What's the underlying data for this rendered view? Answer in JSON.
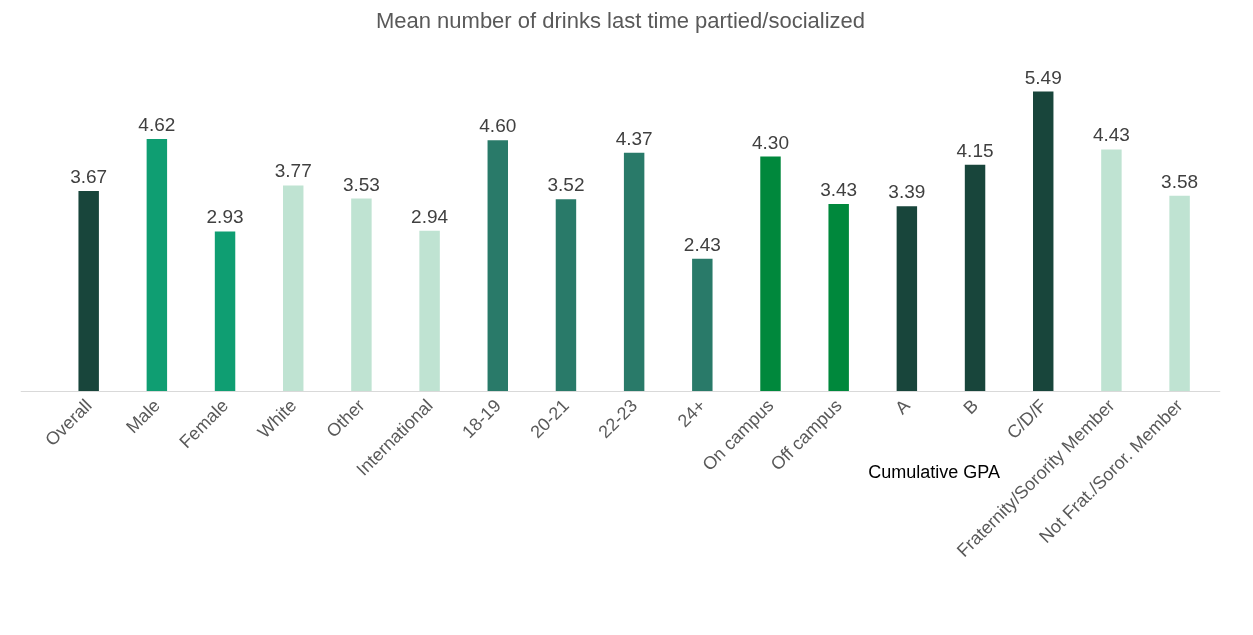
{
  "chart_data": {
    "type": "bar",
    "title": "Mean number of drinks last time partied/socialized",
    "categories": [
      "Overall",
      "Male",
      "Female",
      "White",
      "Other",
      "International",
      "18-19",
      "20-21",
      "22-23",
      "24+",
      "On campus",
      "Off campus",
      "A",
      "B",
      "C/D/F",
      "Fraternity/Sorority Member",
      "Not Frat./Soror. Member"
    ],
    "values": [
      3.67,
      4.62,
      2.93,
      3.77,
      3.53,
      2.94,
      4.6,
      3.52,
      4.37,
      2.43,
      4.3,
      3.43,
      3.39,
      4.15,
      5.49,
      4.43,
      3.58
    ],
    "colors": [
      "#18453b",
      "#0f9e72",
      "#0f9e72",
      "#bfe3d2",
      "#bfe3d2",
      "#bfe3d2",
      "#297a69",
      "#297a69",
      "#297a69",
      "#297a69",
      "#00883c",
      "#00883c",
      "#18453b",
      "#18453b",
      "#18453b",
      "#bfe3d2",
      "#bfe3d2"
    ],
    "value_labels": [
      "3.67",
      "4.62",
      "2.93",
      "3.77",
      "3.53",
      "2.94",
      "4.60",
      "3.52",
      "4.37",
      "2.43",
      "4.30",
      "3.43",
      "3.39",
      "4.15",
      "5.49",
      "4.43",
      "3.58"
    ],
    "grid": false,
    "annotations": [
      "Cumulative GPA"
    ]
  }
}
